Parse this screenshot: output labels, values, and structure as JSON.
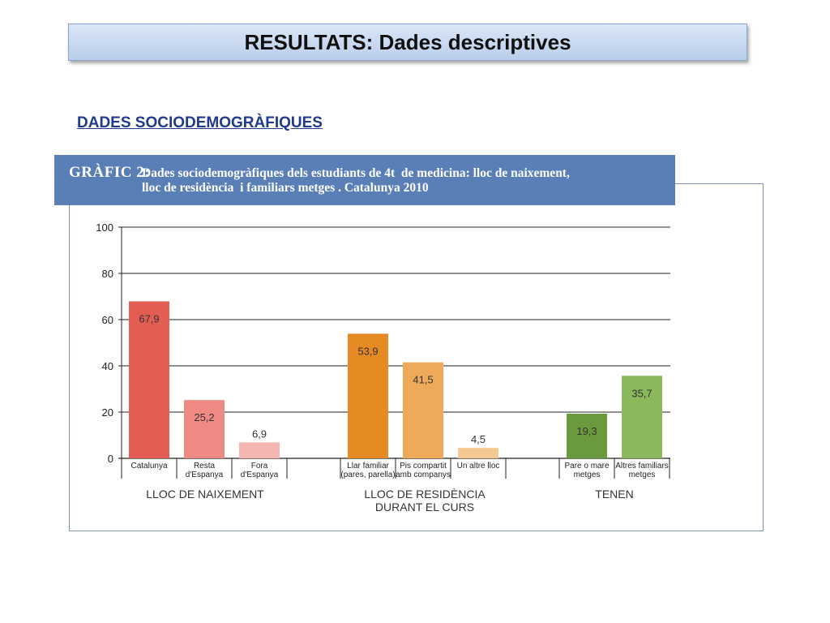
{
  "slide": {
    "title": "RESULTATS: Dades descriptives",
    "section_link": "DADES SOCIODEMOGRÀFIQUES"
  },
  "figure": {
    "label": "GRÀFIC 2:",
    "title_line1": "Dades sociodemogràfiques dels estudiants de 4t  de medicina: lloc de naixement,",
    "title_line2": "lloc de residència  i familiars metges . Catalunya 2010"
  },
  "chart_data": {
    "type": "bar",
    "ylim": [
      0,
      100
    ],
    "yticks": [
      "0",
      "20",
      "40",
      "60",
      "80",
      "100"
    ],
    "grid": true,
    "groups": [
      {
        "name": "LLOC DE NAIXEMENT",
        "name_line2": "",
        "bars": [
          {
            "category": "Catalunya",
            "category_line2": "",
            "value": 67.9,
            "label": "67,9",
            "color": "#e35d52"
          },
          {
            "category": "Resta",
            "category_line2": "d'Espanya",
            "value": 25.2,
            "label": "25,2",
            "color": "#ee8a83"
          },
          {
            "category": "Fora",
            "category_line2": "d'Espanya",
            "value": 6.9,
            "label": "6,9",
            "color": "#f4b6b1"
          }
        ]
      },
      {
        "name": "LLOC DE RESIDÈNCIA",
        "name_line2": "DURANT EL CURS",
        "bars": [
          {
            "category": "Llar familiar",
            "category_line2": "(pares, parella)",
            "value": 53.9,
            "label": "53,9",
            "color": "#e68a24"
          },
          {
            "category": "Pis compartit",
            "category_line2": "amb companys",
            "value": 41.5,
            "label": "41,5",
            "color": "#eea95b"
          },
          {
            "category": "Un altre lloc",
            "category_line2": "",
            "value": 4.5,
            "label": "4,5",
            "color": "#f4c890"
          }
        ]
      },
      {
        "name": "TENEN",
        "name_line2": "",
        "bars": [
          {
            "category": "Pare o mare",
            "category_line2": "metges",
            "value": 19.3,
            "label": "19,3",
            "color": "#6b9a3e"
          },
          {
            "category": "Altres familiars",
            "category_line2": "metges",
            "value": 35.7,
            "label": "35,7",
            "color": "#8cb85c"
          }
        ]
      }
    ]
  }
}
